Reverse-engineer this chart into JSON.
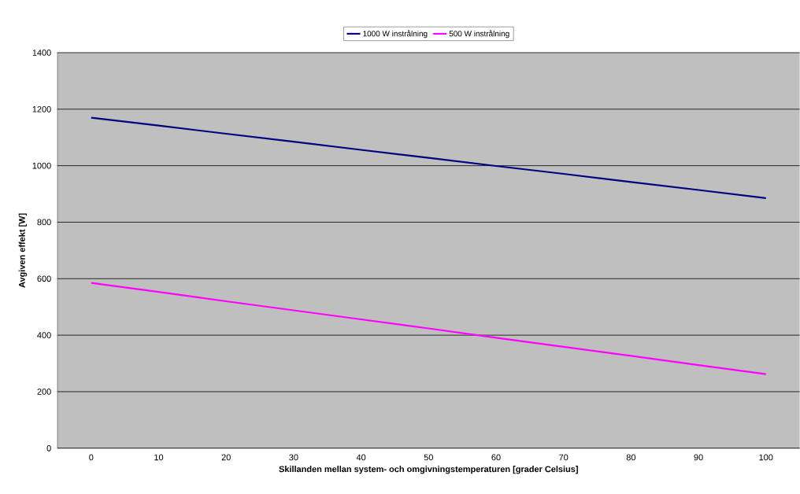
{
  "chart_data": {
    "type": "line",
    "xlabel": "Skillanden mellan system- och omgivningstemperaturen [grader Celsius]",
    "ylabel": "Avgiven effekt [W]",
    "categories": [
      "0",
      "10",
      "20",
      "30",
      "40",
      "50",
      "60",
      "70",
      "80",
      "90",
      "100"
    ],
    "series": [
      {
        "name": "1000 W instrålning",
        "color": "#000080",
        "values": [
          1170,
          1142,
          1113,
          1085,
          1056,
          1028,
          999,
          971,
          942,
          914,
          885
        ]
      },
      {
        "name": "500 W instrålning",
        "color": "#ff00ff",
        "values": [
          585,
          553,
          520,
          488,
          456,
          424,
          391,
          359,
          327,
          294,
          262
        ]
      }
    ],
    "ylim": [
      0,
      1400
    ],
    "yticks": [
      0,
      200,
      400,
      600,
      800,
      1000,
      1200,
      1400
    ],
    "grid": "y",
    "legend": "top",
    "marker": "none",
    "line_style": "solid"
  }
}
